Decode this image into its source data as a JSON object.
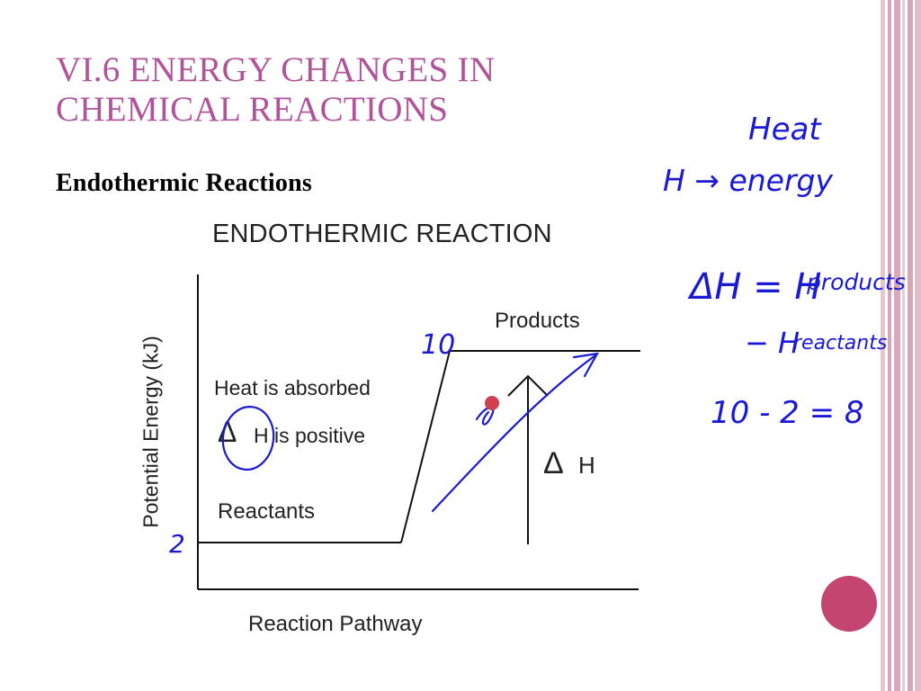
{
  "slide": {
    "title_line1": "VI.6 ENERGY CHANGES IN",
    "title_line2": "CHEMICAL REACTIONS",
    "subtitle": "Endothermic Reactions"
  },
  "diagram": {
    "title": "ENDOTHERMIC REACTION",
    "y_axis_label": "Potential Energy (kJ)",
    "x_axis_label": "Reaction Pathway",
    "products_label": "Products",
    "heat_absorbed_label": "Heat is absorbed",
    "delta_symbol": "Δ",
    "h_positive_label": "H is positive",
    "delta_h_label": "H",
    "reactants_label": "Reactants"
  },
  "annotations": {
    "products_value": "10",
    "reactants_value": "2",
    "heat_word": "Heat",
    "h_energy": "H → energy",
    "delta_h_equation": "ΔH = H",
    "products_subscript": "products",
    "minus_reactants": "− H",
    "reactants_subscript": "reactants",
    "calculation": "10 - 2 = 8",
    "ink_color": "#1a1ad6"
  },
  "theme": {
    "title_color": "#b0539a",
    "border_color": "#d9a9b9",
    "circle_color": "#c4456f"
  }
}
